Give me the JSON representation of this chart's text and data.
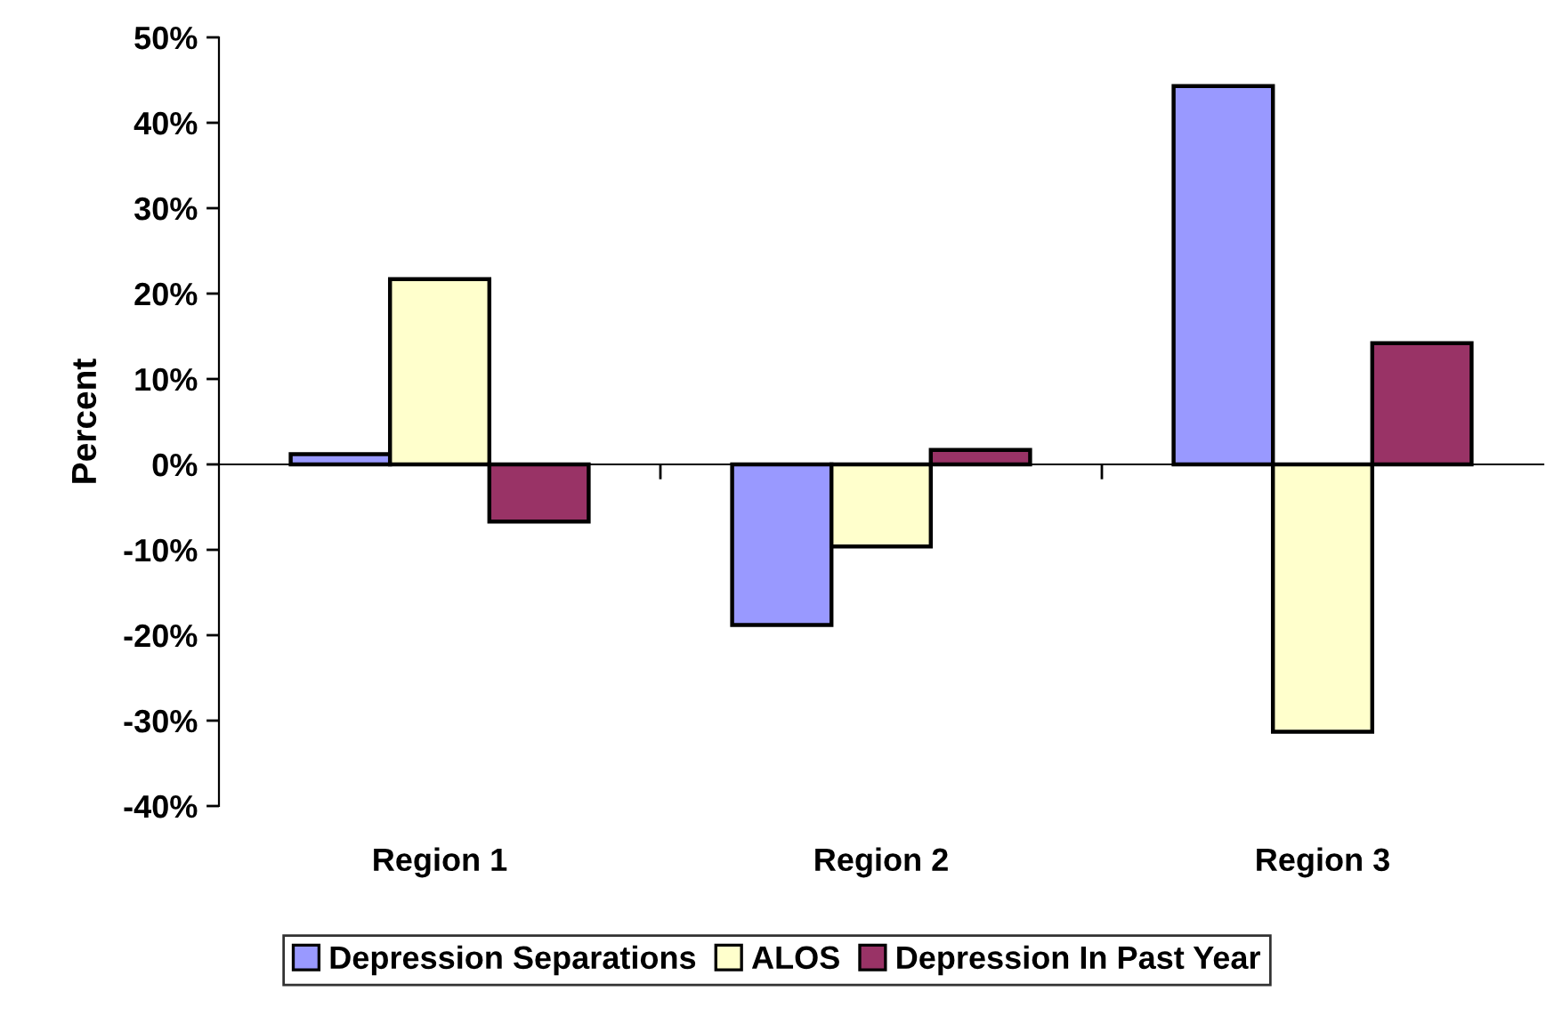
{
  "chart_data": {
    "type": "bar",
    "ylabel": "Percent",
    "categories": [
      "Region 1",
      "Region 2",
      "Region 3"
    ],
    "series": [
      {
        "name": "Depression Separations",
        "color": "#9999ff",
        "values": [
          1.2,
          -18.8,
          44.3
        ]
      },
      {
        "name": "ALOS",
        "color": "#ffffcc",
        "values": [
          21.7,
          -9.6,
          -31.3
        ]
      },
      {
        "name": "Depression In Past Year",
        "color": "#993366",
        "values": [
          -6.7,
          1.7,
          14.2
        ]
      }
    ],
    "ylim": [
      -40,
      50
    ],
    "yticks": [
      {
        "value": -40,
        "label": "-40%"
      },
      {
        "value": -30,
        "label": "-30%"
      },
      {
        "value": -20,
        "label": "-20%"
      },
      {
        "value": -10,
        "label": "-10%"
      },
      {
        "value": 0,
        "label": "0%"
      },
      {
        "value": 10,
        "label": "10%"
      },
      {
        "value": 20,
        "label": "20%"
      },
      {
        "value": 30,
        "label": "30%"
      },
      {
        "value": 40,
        "label": "40%"
      },
      {
        "value": 50,
        "label": "50%"
      }
    ],
    "legend": "bottom"
  }
}
